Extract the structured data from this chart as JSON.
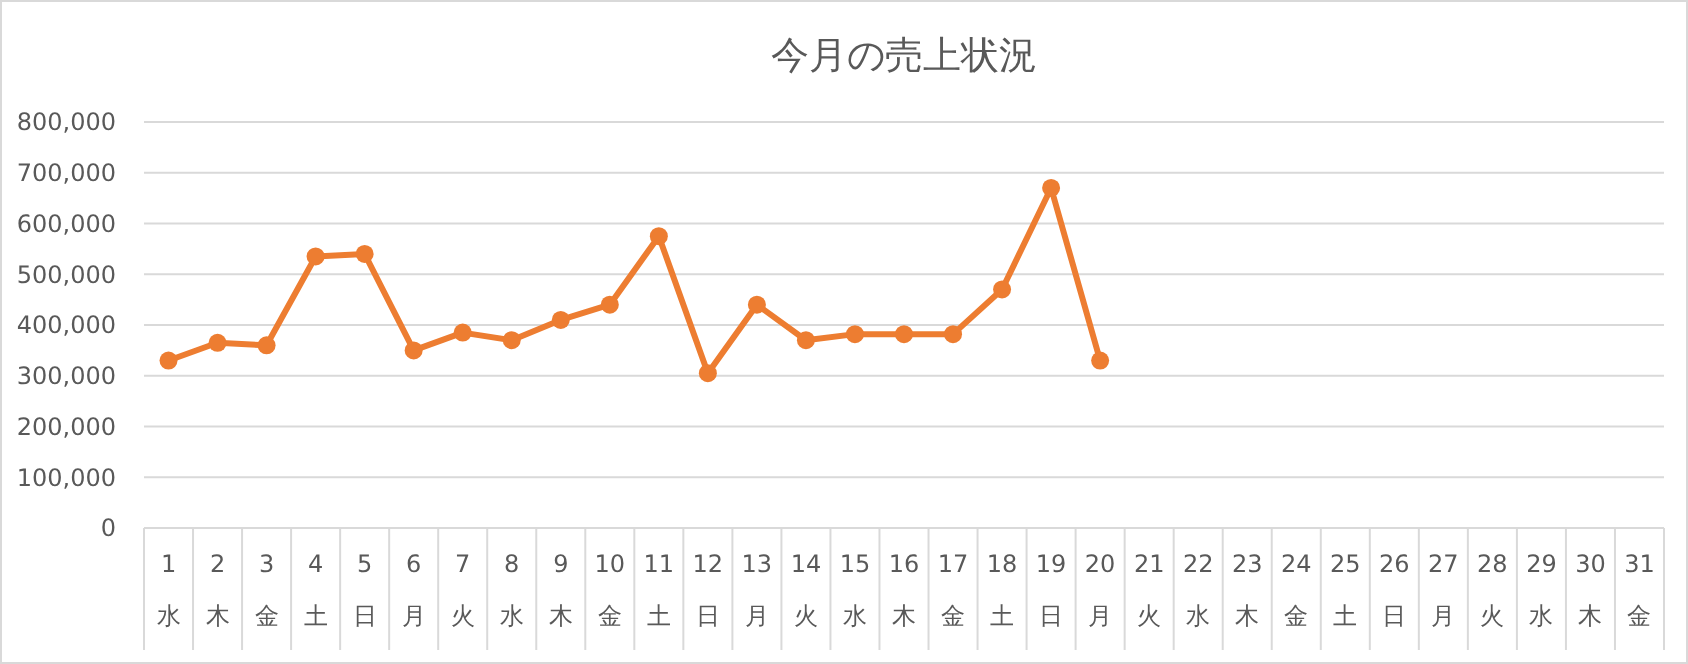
{
  "chart_data": {
    "type": "line",
    "title": "今月の売上状況",
    "categories": [
      "1\n水",
      "2\n木",
      "3\n金",
      "4\n土",
      "5\n日",
      "6\n月",
      "7\n火",
      "8\n水",
      "9\n木",
      "10\n金",
      "11\n土",
      "12\n日",
      "13\n月",
      "14\n火",
      "15\n水",
      "16\n木",
      "17\n金",
      "18\n土",
      "19\n日",
      "20\n月",
      "21\n火",
      "22\n水",
      "23\n木",
      "24\n金",
      "25\n土",
      "26\n日",
      "27\n月",
      "28\n火",
      "29\n水",
      "30\n木",
      "31\n金"
    ],
    "series": [
      {
        "color": "#ed7d31",
        "values": [
          330000,
          365000,
          360000,
          535000,
          540000,
          350000,
          385000,
          370000,
          410000,
          440000,
          575000,
          305000,
          440000,
          370000,
          382000,
          382000,
          382000,
          470000,
          670000,
          330000,
          null,
          null,
          null,
          null,
          null,
          null,
          null,
          null,
          null,
          null,
          null
        ]
      }
    ],
    "ylim": [
      0,
      800000
    ],
    "yticks": [
      {
        "value": 0,
        "label": "0"
      },
      {
        "value": 100000,
        "label": "100,000"
      },
      {
        "value": 200000,
        "label": "200,000"
      },
      {
        "value": 300000,
        "label": "300,000"
      },
      {
        "value": 400000,
        "label": "400,000"
      },
      {
        "value": 500000,
        "label": "500,000"
      },
      {
        "value": 600000,
        "label": "600,000"
      },
      {
        "value": 700000,
        "label": "700,000"
      },
      {
        "value": 800000,
        "label": "800,000"
      }
    ],
    "grid": "y",
    "marker": "circle",
    "line_style": "solid"
  }
}
